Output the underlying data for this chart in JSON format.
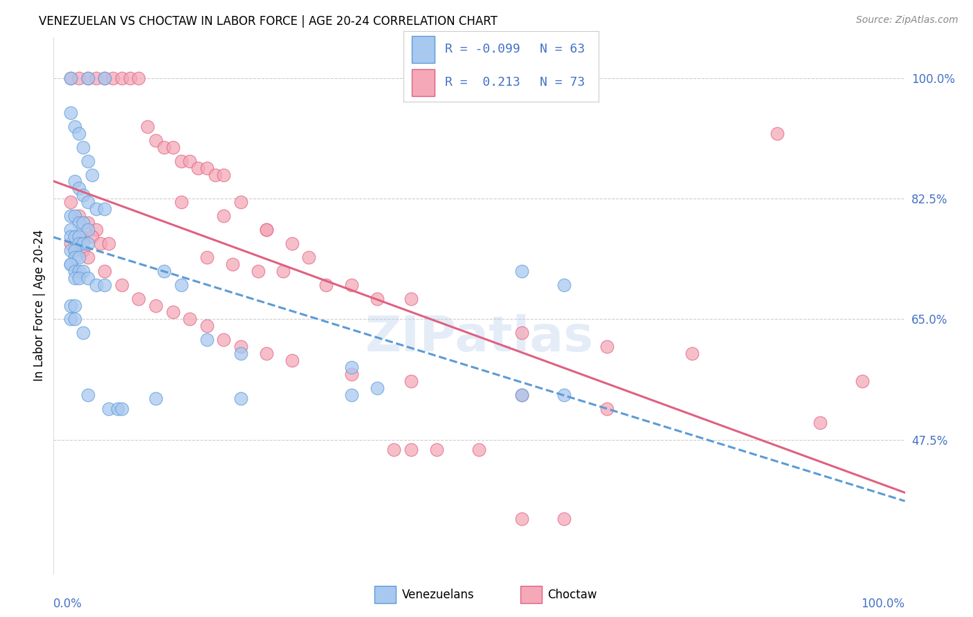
{
  "title": "VENEZUELAN VS CHOCTAW IN LABOR FORCE | AGE 20-24 CORRELATION CHART",
  "source": "Source: ZipAtlas.com",
  "ylabel": "In Labor Force | Age 20-24",
  "ylabel_ticks": [
    "100.0%",
    "82.5%",
    "65.0%",
    "47.5%"
  ],
  "y_tick_values": [
    1.0,
    0.825,
    0.65,
    0.475
  ],
  "xmin": 0.0,
  "xmax": 1.0,
  "ymin": 0.28,
  "ymax": 1.06,
  "legend_R_blue": "-0.099",
  "legend_N_blue": "63",
  "legend_R_pink": "0.213",
  "legend_N_pink": "73",
  "color_blue_fill": "#A8C8F0",
  "color_pink_fill": "#F4A8B8",
  "color_blue_edge": "#5B9BD5",
  "color_pink_edge": "#E06080",
  "color_blue_line": "#5B9BD5",
  "color_pink_line": "#E06080",
  "venezuelan_x": [
    0.02,
    0.04,
    0.06,
    0.02,
    0.025,
    0.03,
    0.035,
    0.04,
    0.045,
    0.025,
    0.03,
    0.035,
    0.04,
    0.05,
    0.06,
    0.02,
    0.025,
    0.03,
    0.035,
    0.04,
    0.02,
    0.02,
    0.025,
    0.03,
    0.03,
    0.035,
    0.04,
    0.02,
    0.025,
    0.025,
    0.03,
    0.02,
    0.02,
    0.025,
    0.03,
    0.035,
    0.025,
    0.03,
    0.04,
    0.05,
    0.06,
    0.13,
    0.15,
    0.18,
    0.22,
    0.35,
    0.38,
    0.55,
    0.6,
    0.02,
    0.025,
    0.02,
    0.025,
    0.035,
    0.04,
    0.065,
    0.075,
    0.08,
    0.12,
    0.22,
    0.35,
    0.55,
    0.6
  ],
  "venezuelan_y": [
    1.0,
    1.0,
    1.0,
    0.95,
    0.93,
    0.92,
    0.9,
    0.88,
    0.86,
    0.85,
    0.84,
    0.83,
    0.82,
    0.81,
    0.81,
    0.8,
    0.8,
    0.79,
    0.79,
    0.78,
    0.78,
    0.77,
    0.77,
    0.77,
    0.76,
    0.76,
    0.76,
    0.75,
    0.75,
    0.74,
    0.74,
    0.73,
    0.73,
    0.72,
    0.72,
    0.72,
    0.71,
    0.71,
    0.71,
    0.7,
    0.7,
    0.72,
    0.7,
    0.62,
    0.6,
    0.58,
    0.55,
    0.72,
    0.7,
    0.67,
    0.67,
    0.65,
    0.65,
    0.63,
    0.54,
    0.52,
    0.52,
    0.52,
    0.535,
    0.535,
    0.54,
    0.54,
    0.54
  ],
  "choctaw_x": [
    0.02,
    0.03,
    0.04,
    0.05,
    0.06,
    0.07,
    0.08,
    0.09,
    0.1,
    0.11,
    0.12,
    0.13,
    0.14,
    0.15,
    0.16,
    0.17,
    0.18,
    0.19,
    0.2,
    0.02,
    0.03,
    0.04,
    0.05,
    0.035,
    0.045,
    0.055,
    0.065,
    0.025,
    0.035,
    0.22,
    0.25,
    0.28,
    0.3,
    0.15,
    0.2,
    0.25,
    0.18,
    0.21,
    0.24,
    0.27,
    0.32,
    0.35,
    0.38,
    0.42,
    0.55,
    0.65,
    0.75,
    0.02,
    0.04,
    0.06,
    0.08,
    0.1,
    0.12,
    0.14,
    0.16,
    0.18,
    0.2,
    0.22,
    0.25,
    0.28,
    0.35,
    0.42,
    0.55,
    0.65,
    0.85,
    0.9,
    0.95,
    0.4,
    0.42,
    0.45,
    0.5,
    0.55,
    0.6
  ],
  "choctaw_y": [
    1.0,
    1.0,
    1.0,
    1.0,
    1.0,
    1.0,
    1.0,
    1.0,
    1.0,
    0.93,
    0.91,
    0.9,
    0.9,
    0.88,
    0.88,
    0.87,
    0.87,
    0.86,
    0.86,
    0.82,
    0.8,
    0.79,
    0.78,
    0.77,
    0.77,
    0.76,
    0.76,
    0.75,
    0.75,
    0.82,
    0.78,
    0.76,
    0.74,
    0.82,
    0.8,
    0.78,
    0.74,
    0.73,
    0.72,
    0.72,
    0.7,
    0.7,
    0.68,
    0.68,
    0.63,
    0.61,
    0.6,
    0.76,
    0.74,
    0.72,
    0.7,
    0.68,
    0.67,
    0.66,
    0.65,
    0.64,
    0.62,
    0.61,
    0.6,
    0.59,
    0.57,
    0.56,
    0.54,
    0.52,
    0.92,
    0.5,
    0.56,
    0.46,
    0.46,
    0.46,
    0.46,
    0.36,
    0.36
  ]
}
